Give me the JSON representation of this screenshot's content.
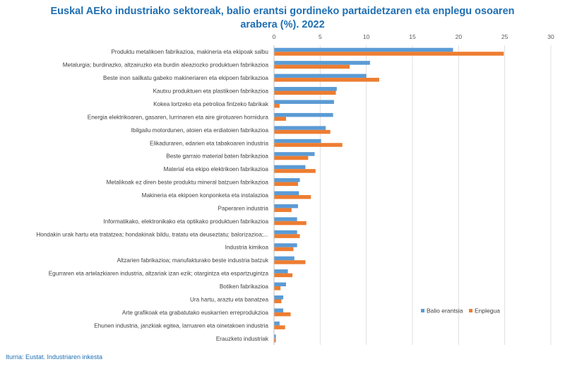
{
  "title": {
    "line1": "Euskal AEko industriako sektoreak, balio erantsi gordineko partaidetzaren eta enplegu osoaren",
    "line2": "arabera (%). 2022"
  },
  "source": "Iturria: Eustat. Industriaren inkesta",
  "colors": {
    "balio": "#5b9bd5",
    "enplegua": "#ed7d31",
    "title": "#1f6fb2"
  },
  "chart_data": {
    "type": "bar",
    "orientation": "horizontal",
    "title": "Euskal AEko industriako sektoreak, balio erantsi gordineko partaidetzaren eta enplegu osoaren arabera (%). 2022",
    "xlim": [
      0,
      30
    ],
    "xticks": [
      0,
      5,
      10,
      15,
      20,
      25,
      30
    ],
    "xaxis_position": "top",
    "legend_position": "bottom-right",
    "categories": [
      "Produktu metalikoen fabrikazioa, makineria eta ekipoak salbu",
      "Metalurgia; burdinazko, altzairuzko eta burdin aleaziozko produktuen fabrikazioa",
      "Beste inon sailkatu gabeko makineriaren eta ekipoen fabrikazioa",
      "Kautxu produktuen eta plastikoen fabrikazioa",
      "Kokea lortzeko eta petrolioa fintzeko fabrikak",
      "Energia elektrikoaren, gasaren, lurrinaren eta aire girotuaren hornidura",
      "Ibilgailu motordunen, atoien eta erdiatoien fabrikazioa",
      "Elikaduraren, edarien eta tabakoaren industria",
      "Beste garraio material baten fabrikazioa",
      "Material eta ekipo elektrikoen fabrikazioa",
      "Metalikoak ez diren beste produktu mineral batzuen fabrikazioa",
      "Makineria eta ekipoen konponketa eta instalazioa",
      "Paperaren industria",
      "Informatikako, elektronikako eta optikako produktuen fabrikazioa",
      "Hondakin urak hartu eta tratatzea; hondakinak bildu, tratatu eta deuseztatu; balorizazioa;...",
      "Industria kimikoa",
      "Altzarien fabrikazioa; manufakturako beste industria batzuk",
      "Egurraren eta artelazkiaren industria, altzariak izan ezik; otargintza eta espartzugintza",
      "Botiken fabrikazioa",
      "Ura hartu, araztu eta banatzea",
      "Arte grafikoak eta grabatutako euskarrien erreprodukzioa",
      "Ehunen industria, janzkiak egitea, larruaren eta oinetakoen industria",
      "Erauzketo industriak"
    ],
    "series": [
      {
        "name": "Balio erantsia",
        "values": [
          19.4,
          10.4,
          10.0,
          6.8,
          6.5,
          6.4,
          5.6,
          5.1,
          4.4,
          3.4,
          2.8,
          2.7,
          2.6,
          2.5,
          2.5,
          2.5,
          2.2,
          1.5,
          1.3,
          1.0,
          1.0,
          0.6,
          0.2
        ]
      },
      {
        "name": "Enplegua",
        "values": [
          24.9,
          8.2,
          11.4,
          6.7,
          0.6,
          1.3,
          6.1,
          7.4,
          3.7,
          4.5,
          2.6,
          4.0,
          1.9,
          3.5,
          2.8,
          2.1,
          3.4,
          2.0,
          0.7,
          0.8,
          1.8,
          1.2,
          0.2
        ]
      }
    ]
  }
}
